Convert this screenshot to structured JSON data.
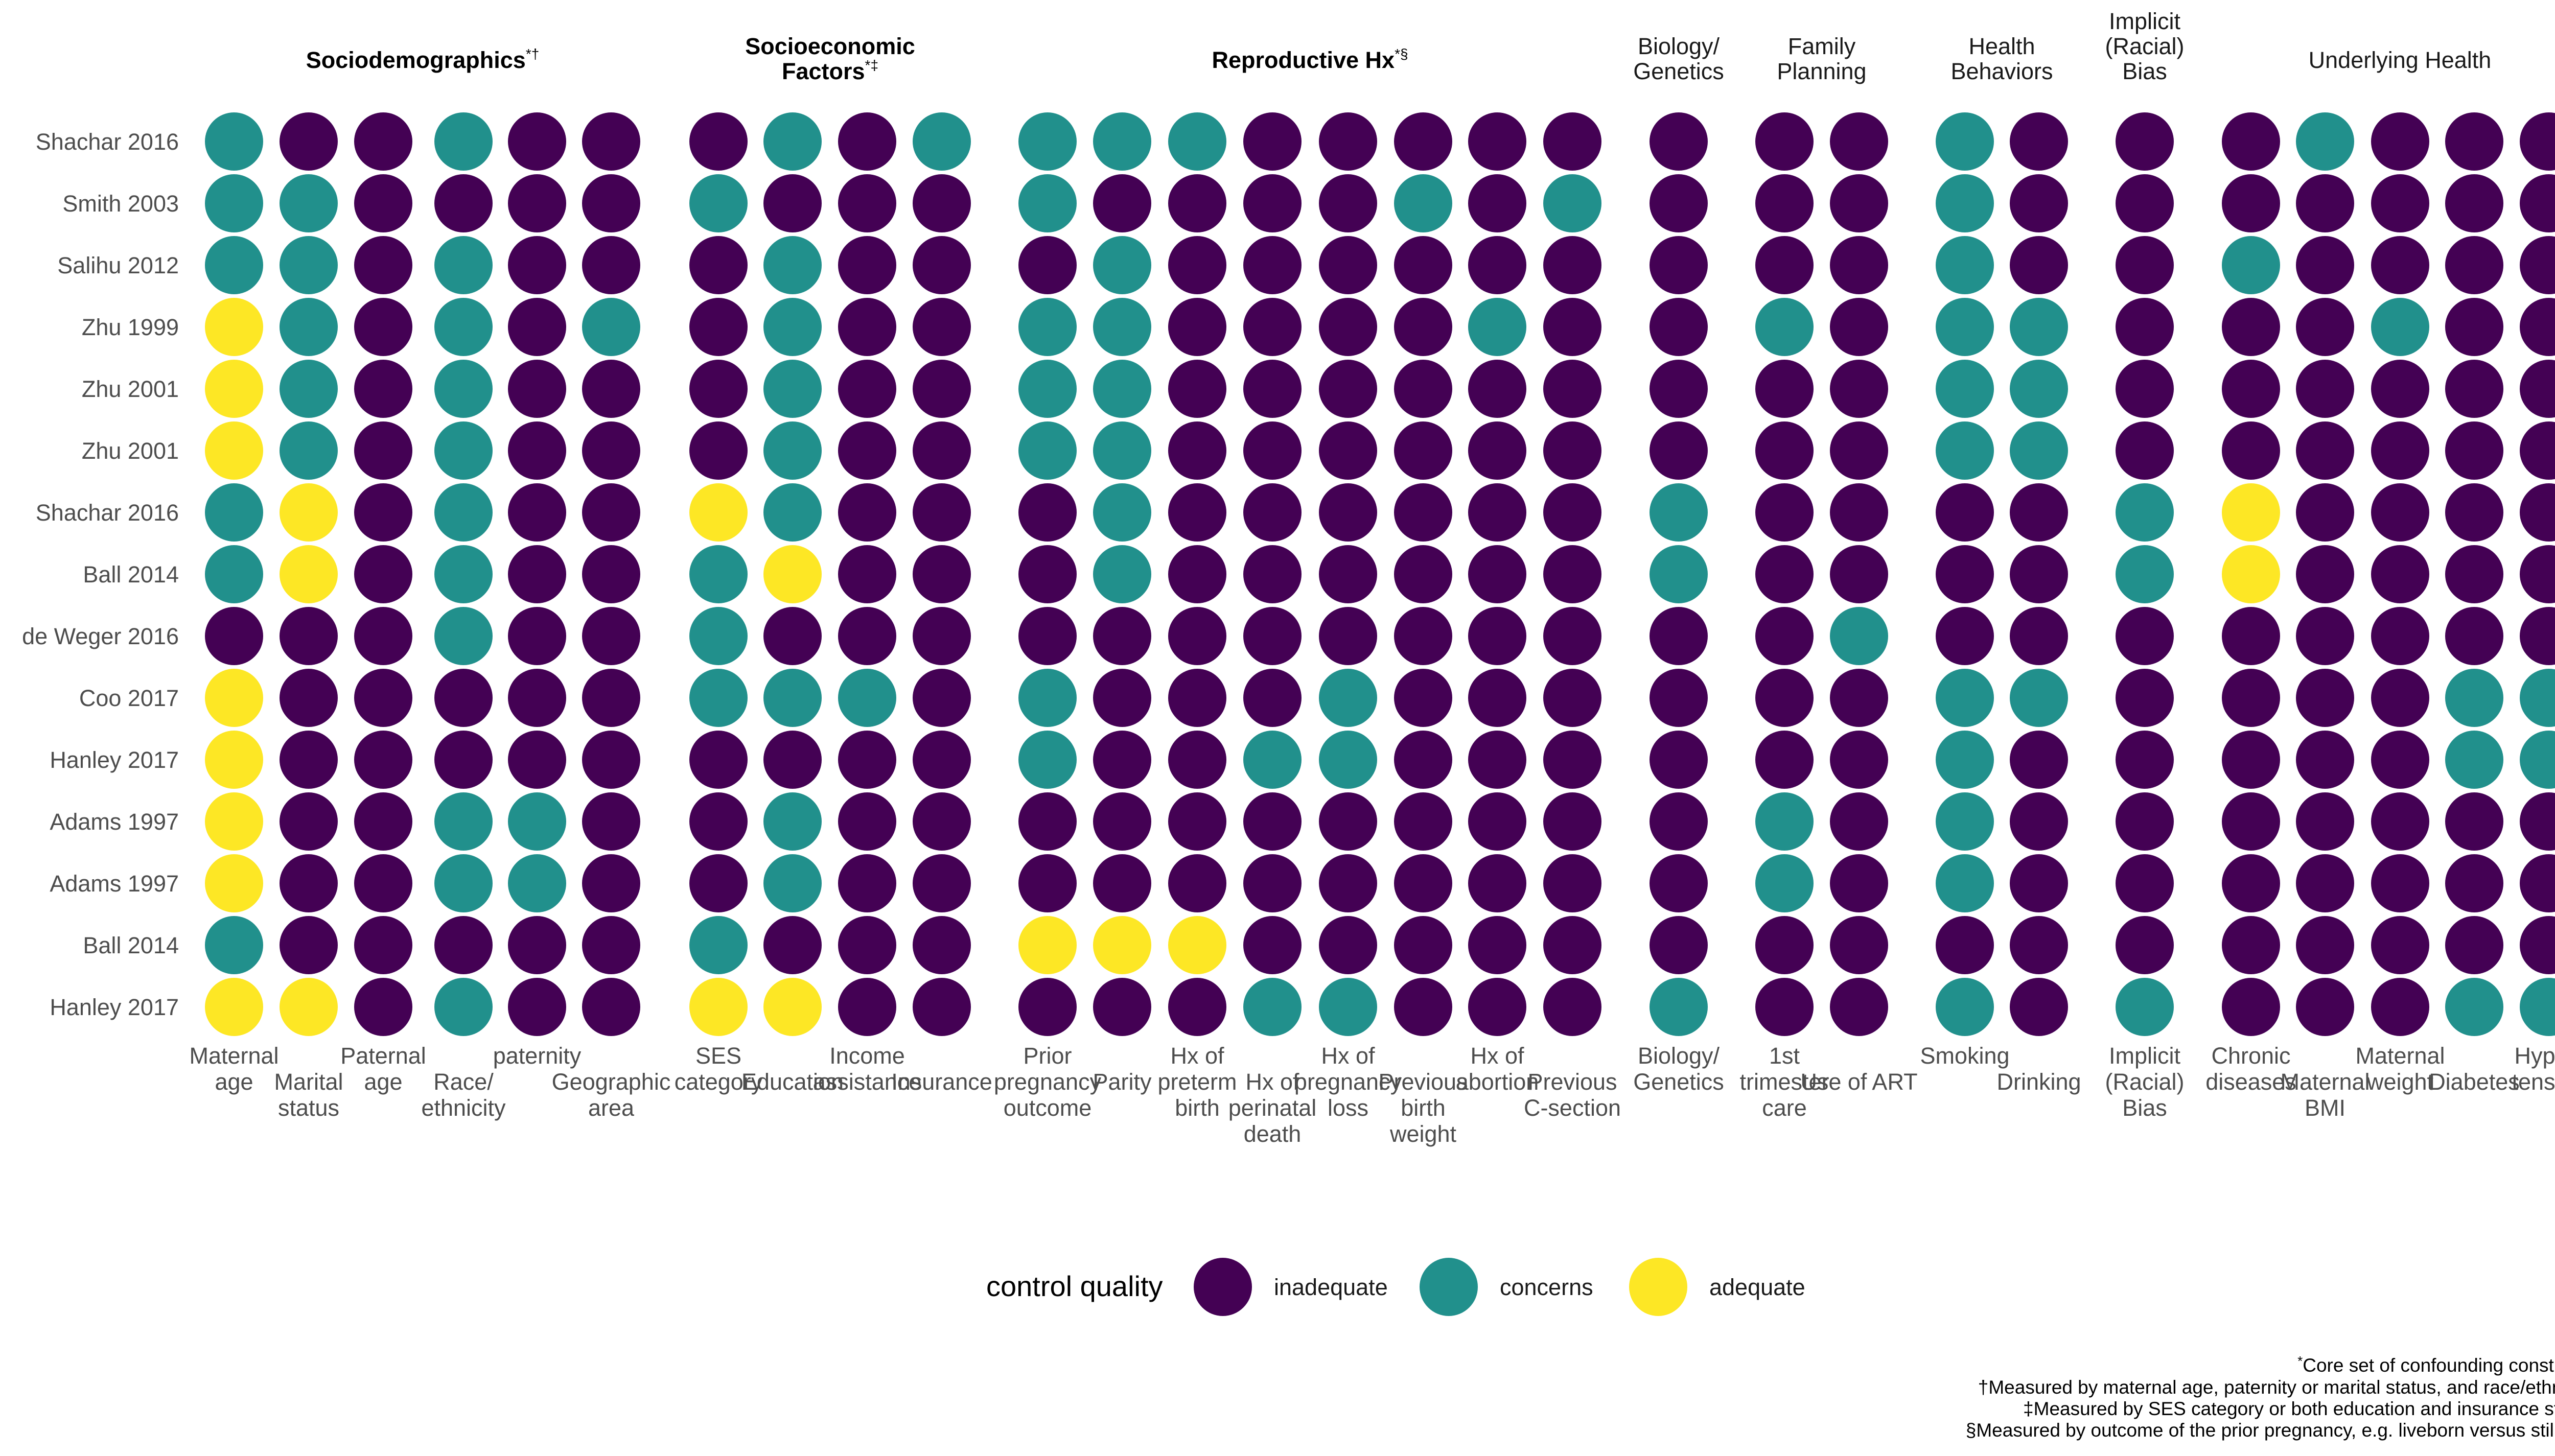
{
  "chart_data": {
    "type": "heatmap",
    "legend": {
      "title": "control quality",
      "levels": [
        "inadequate",
        "concerns",
        "adequate"
      ],
      "colors": {
        "inadequate": "#440154",
        "concerns": "#21908C",
        "adequate": "#FDE725"
      },
      "placement": "bottom"
    },
    "groups": [
      {
        "key": "socio",
        "title": "Sociodemographics",
        "sup": "*†",
        "bold": true,
        "columns": [
          0,
          1,
          2,
          3,
          4,
          5
        ]
      },
      {
        "key": "econ",
        "title": "Socioeconomic\nFactors",
        "sup": "*‡",
        "bold": true,
        "columns": [
          6,
          7,
          8,
          9
        ]
      },
      {
        "key": "repro",
        "title": "Reproductive Hx",
        "sup": "*§",
        "bold": true,
        "columns": [
          10,
          11,
          12,
          13,
          14,
          15,
          16,
          17
        ]
      },
      {
        "key": "bio",
        "title": "Biology/\nGenetics",
        "sup": "",
        "bold": false,
        "columns": [
          18
        ]
      },
      {
        "key": "family",
        "title": "Family\nPlanning",
        "sup": "",
        "bold": false,
        "columns": [
          19,
          20
        ]
      },
      {
        "key": "health",
        "title": "Health\nBehaviors",
        "sup": "",
        "bold": false,
        "columns": [
          21,
          22
        ]
      },
      {
        "key": "bias",
        "title": "Implicit\n(Racial)\nBias",
        "sup": "",
        "bold": false,
        "columns": [
          23
        ]
      },
      {
        "key": "under",
        "title": "Underlying Health",
        "sup": "",
        "bold": false,
        "columns": [
          24,
          25,
          26,
          27,
          28
        ]
      }
    ],
    "columns": [
      "Maternal\nage",
      "Marital\nstatus",
      "Paternal\nage",
      "Race/\nethnicity",
      "paternity",
      "Geographic\narea",
      "SES\ncategory",
      "Education",
      "Income\nassistance",
      "Insurance",
      "Prior\npregnancy\noutcome",
      "Parity",
      "Hx of\npreterm\nbirth",
      "Hx of\nperinatal\ndeath",
      "Hx of\npregnancy\nloss",
      "Previous\nbirth\nweight",
      "Hx of\nabortion",
      "Previous\nC-section",
      "Biology/\nGenetics",
      "1st\ntrimester\ncare",
      "Use of ART",
      "Smoking",
      "Drinking",
      "Implicit\n(Racial)\nBias",
      "Chronic\ndiseases",
      "Maternal\nBMI",
      "Maternal\nweight",
      "Diabetes",
      "Hyper-\ntension"
    ],
    "rows": [
      "Shachar 2016",
      "Smith 2003",
      "Salihu 2012",
      "Zhu 1999",
      "Zhu 2001",
      "Zhu 2001",
      "Shachar 2016",
      "Ball 2014",
      "de Weger 2016",
      "Coo 2017",
      "Hanley 2017",
      "Adams 1997",
      "Adams 1997",
      "Ball 2014",
      "Hanley 2017"
    ],
    "values": [
      [
        "concerns",
        "inadequate",
        "inadequate",
        "concerns",
        "inadequate",
        "inadequate",
        "inadequate",
        "concerns",
        "inadequate",
        "concerns",
        "concerns",
        "concerns",
        "concerns",
        "inadequate",
        "inadequate",
        "inadequate",
        "inadequate",
        "inadequate",
        "inadequate",
        "inadequate",
        "inadequate",
        "concerns",
        "inadequate",
        "inadequate",
        "inadequate",
        "concerns",
        "inadequate",
        "inadequate",
        "inadequate"
      ],
      [
        "concerns",
        "concerns",
        "inadequate",
        "inadequate",
        "inadequate",
        "inadequate",
        "concerns",
        "inadequate",
        "inadequate",
        "inadequate",
        "concerns",
        "inadequate",
        "inadequate",
        "inadequate",
        "inadequate",
        "concerns",
        "inadequate",
        "concerns",
        "inadequate",
        "inadequate",
        "inadequate",
        "concerns",
        "inadequate",
        "inadequate",
        "inadequate",
        "inadequate",
        "inadequate",
        "inadequate",
        "inadequate"
      ],
      [
        "concerns",
        "concerns",
        "inadequate",
        "concerns",
        "inadequate",
        "inadequate",
        "inadequate",
        "concerns",
        "inadequate",
        "inadequate",
        "inadequate",
        "concerns",
        "inadequate",
        "inadequate",
        "inadequate",
        "inadequate",
        "inadequate",
        "inadequate",
        "inadequate",
        "inadequate",
        "inadequate",
        "concerns",
        "inadequate",
        "inadequate",
        "concerns",
        "inadequate",
        "inadequate",
        "inadequate",
        "inadequate"
      ],
      [
        "adequate",
        "concerns",
        "inadequate",
        "concerns",
        "inadequate",
        "concerns",
        "inadequate",
        "concerns",
        "inadequate",
        "inadequate",
        "concerns",
        "concerns",
        "inadequate",
        "inadequate",
        "inadequate",
        "inadequate",
        "concerns",
        "inadequate",
        "inadequate",
        "concerns",
        "inadequate",
        "concerns",
        "concerns",
        "inadequate",
        "inadequate",
        "inadequate",
        "concerns",
        "inadequate",
        "inadequate"
      ],
      [
        "adequate",
        "concerns",
        "inadequate",
        "concerns",
        "inadequate",
        "inadequate",
        "inadequate",
        "concerns",
        "inadequate",
        "inadequate",
        "concerns",
        "concerns",
        "inadequate",
        "inadequate",
        "inadequate",
        "inadequate",
        "inadequate",
        "inadequate",
        "inadequate",
        "inadequate",
        "inadequate",
        "concerns",
        "concerns",
        "inadequate",
        "inadequate",
        "inadequate",
        "inadequate",
        "inadequate",
        "inadequate"
      ],
      [
        "adequate",
        "concerns",
        "inadequate",
        "concerns",
        "inadequate",
        "inadequate",
        "inadequate",
        "concerns",
        "inadequate",
        "inadequate",
        "concerns",
        "concerns",
        "inadequate",
        "inadequate",
        "inadequate",
        "inadequate",
        "inadequate",
        "inadequate",
        "inadequate",
        "inadequate",
        "inadequate",
        "concerns",
        "concerns",
        "inadequate",
        "inadequate",
        "inadequate",
        "inadequate",
        "inadequate",
        "inadequate"
      ],
      [
        "concerns",
        "adequate",
        "inadequate",
        "concerns",
        "inadequate",
        "inadequate",
        "adequate",
        "concerns",
        "inadequate",
        "inadequate",
        "inadequate",
        "concerns",
        "inadequate",
        "inadequate",
        "inadequate",
        "inadequate",
        "inadequate",
        "inadequate",
        "concerns",
        "inadequate",
        "inadequate",
        "inadequate",
        "inadequate",
        "concerns",
        "adequate",
        "inadequate",
        "inadequate",
        "inadequate",
        "inadequate"
      ],
      [
        "concerns",
        "adequate",
        "inadequate",
        "concerns",
        "inadequate",
        "inadequate",
        "concerns",
        "adequate",
        "inadequate",
        "inadequate",
        "inadequate",
        "concerns",
        "inadequate",
        "inadequate",
        "inadequate",
        "inadequate",
        "inadequate",
        "inadequate",
        "concerns",
        "inadequate",
        "inadequate",
        "inadequate",
        "inadequate",
        "concerns",
        "adequate",
        "inadequate",
        "inadequate",
        "inadequate",
        "inadequate"
      ],
      [
        "inadequate",
        "inadequate",
        "inadequate",
        "concerns",
        "inadequate",
        "inadequate",
        "concerns",
        "inadequate",
        "inadequate",
        "inadequate",
        "inadequate",
        "inadequate",
        "inadequate",
        "inadequate",
        "inadequate",
        "inadequate",
        "inadequate",
        "inadequate",
        "inadequate",
        "inadequate",
        "concerns",
        "inadequate",
        "inadequate",
        "inadequate",
        "inadequate",
        "inadequate",
        "inadequate",
        "inadequate",
        "inadequate"
      ],
      [
        "adequate",
        "inadequate",
        "inadequate",
        "inadequate",
        "inadequate",
        "inadequate",
        "concerns",
        "concerns",
        "concerns",
        "inadequate",
        "concerns",
        "inadequate",
        "inadequate",
        "inadequate",
        "concerns",
        "inadequate",
        "inadequate",
        "inadequate",
        "inadequate",
        "inadequate",
        "inadequate",
        "concerns",
        "concerns",
        "inadequate",
        "inadequate",
        "inadequate",
        "inadequate",
        "concerns",
        "concerns"
      ],
      [
        "adequate",
        "inadequate",
        "inadequate",
        "inadequate",
        "inadequate",
        "inadequate",
        "inadequate",
        "inadequate",
        "inadequate",
        "inadequate",
        "concerns",
        "inadequate",
        "inadequate",
        "concerns",
        "concerns",
        "inadequate",
        "inadequate",
        "inadequate",
        "inadequate",
        "inadequate",
        "inadequate",
        "concerns",
        "inadequate",
        "inadequate",
        "inadequate",
        "inadequate",
        "inadequate",
        "concerns",
        "concerns"
      ],
      [
        "adequate",
        "inadequate",
        "inadequate",
        "concerns",
        "concerns",
        "inadequate",
        "inadequate",
        "concerns",
        "inadequate",
        "inadequate",
        "inadequate",
        "inadequate",
        "inadequate",
        "inadequate",
        "inadequate",
        "inadequate",
        "inadequate",
        "inadequate",
        "inadequate",
        "concerns",
        "inadequate",
        "concerns",
        "inadequate",
        "inadequate",
        "inadequate",
        "inadequate",
        "inadequate",
        "inadequate",
        "inadequate"
      ],
      [
        "adequate",
        "inadequate",
        "inadequate",
        "concerns",
        "concerns",
        "inadequate",
        "inadequate",
        "concerns",
        "inadequate",
        "inadequate",
        "inadequate",
        "inadequate",
        "inadequate",
        "inadequate",
        "inadequate",
        "inadequate",
        "inadequate",
        "inadequate",
        "inadequate",
        "concerns",
        "inadequate",
        "concerns",
        "inadequate",
        "inadequate",
        "inadequate",
        "inadequate",
        "inadequate",
        "inadequate",
        "inadequate"
      ],
      [
        "concerns",
        "inadequate",
        "inadequate",
        "inadequate",
        "inadequate",
        "inadequate",
        "concerns",
        "inadequate",
        "inadequate",
        "inadequate",
        "adequate",
        "adequate",
        "adequate",
        "inadequate",
        "inadequate",
        "inadequate",
        "inadequate",
        "inadequate",
        "inadequate",
        "inadequate",
        "inadequate",
        "inadequate",
        "inadequate",
        "inadequate",
        "inadequate",
        "inadequate",
        "inadequate",
        "inadequate",
        "inadequate"
      ],
      [
        "adequate",
        "adequate",
        "inadequate",
        "concerns",
        "inadequate",
        "inadequate",
        "adequate",
        "adequate",
        "inadequate",
        "inadequate",
        "inadequate",
        "inadequate",
        "inadequate",
        "concerns",
        "concerns",
        "inadequate",
        "inadequate",
        "inadequate",
        "concerns",
        "inadequate",
        "inadequate",
        "concerns",
        "inadequate",
        "concerns",
        "inadequate",
        "inadequate",
        "inadequate",
        "concerns",
        "concerns"
      ]
    ],
    "footnotes": [
      {
        "mark": "*",
        "text": "Core set of confounding constructs"
      },
      {
        "mark": "†",
        "text": "Measured by maternal age, paternity or marital status, and race/ethnicity"
      },
      {
        "mark": "‡",
        "text": "Measured by SES category or both education and insurance status"
      },
      {
        "mark": "§",
        "text": "Measured by outcome of the prior pregnancy, e.g. liveborn versus stillbirth"
      }
    ]
  }
}
